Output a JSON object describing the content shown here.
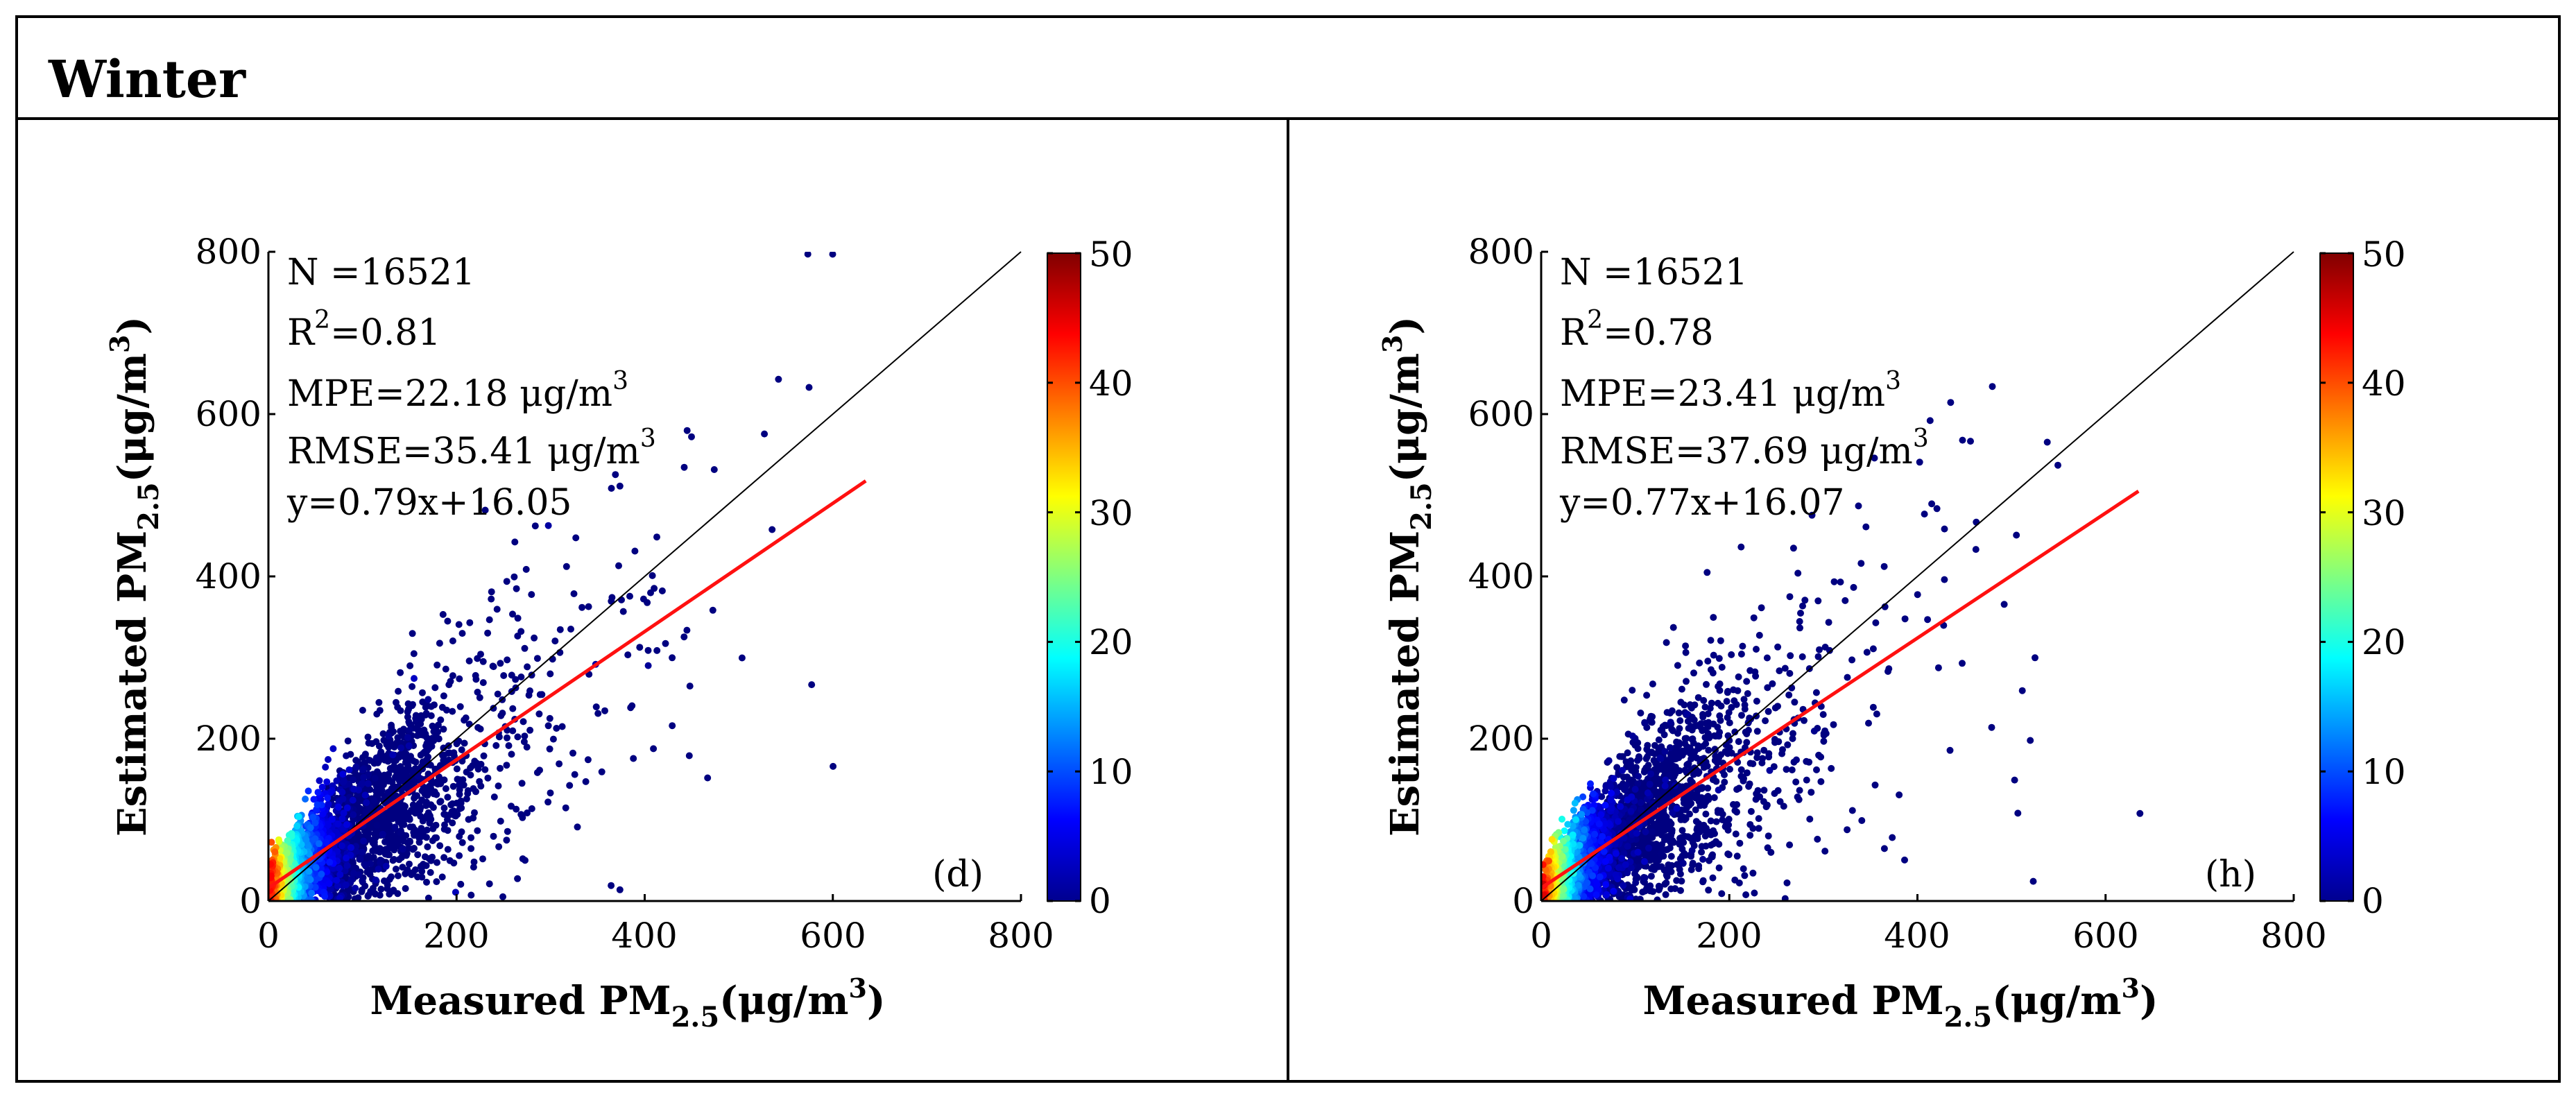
{
  "header": {
    "title": "Winter"
  },
  "colorbar": {
    "min": 0,
    "max": 50,
    "ticks": [
      0,
      10,
      20,
      30,
      40,
      50
    ],
    "colors": [
      "#00008f",
      "#0000ff",
      "#0080ff",
      "#00ffff",
      "#80ff80",
      "#ffff00",
      "#ff8000",
      "#ff0000",
      "#800000"
    ]
  },
  "chart_data": [
    {
      "type": "scatter",
      "panel_label": "(d)",
      "xlabel": {
        "main": "Measured PM",
        "sub": "2.5",
        "unit_open": "(μg/m",
        "unit_sup": "3",
        "unit_close": ")"
      },
      "ylabel": {
        "main": "Estimated PM",
        "sub": "2.5",
        "unit_open": "(μg/m",
        "unit_sup": "3",
        "unit_close": ")"
      },
      "xlim": [
        0,
        800
      ],
      "ylim": [
        0,
        800
      ],
      "xticks": [
        0,
        200,
        400,
        600,
        800
      ],
      "yticks": [
        0,
        200,
        400,
        600,
        800
      ],
      "stats": {
        "n": "N  =16521",
        "r2_label": "R",
        "r2_sup": "2",
        "r2_value": "=0.81",
        "mpe_text": "MPE=22.18 μg/m",
        "mpe_sup": "3",
        "rmse_text": "RMSE=35.41 μg/m",
        "rmse_sup": "3",
        "equation": "y=0.79x+16.05"
      },
      "regression": {
        "slope": 0.79,
        "intercept": 16.05,
        "x_range": [
          0,
          635
        ]
      },
      "reference_line": "1:1",
      "color_metric": "point density (0–50)"
    },
    {
      "type": "scatter",
      "panel_label": "(h)",
      "xlabel": {
        "main": "Measured PM",
        "sub": "2.5",
        "unit_open": "(μg/m",
        "unit_sup": "3",
        "unit_close": ")"
      },
      "ylabel": {
        "main": "Estimated PM",
        "sub": "2.5",
        "unit_open": "(μg/m",
        "unit_sup": "3",
        "unit_close": ")"
      },
      "xlim": [
        0,
        800
      ],
      "ylim": [
        0,
        800
      ],
      "xticks": [
        0,
        200,
        400,
        600,
        800
      ],
      "yticks": [
        0,
        200,
        400,
        600,
        800
      ],
      "stats": {
        "n": "N  =16521",
        "r2_label": "R",
        "r2_sup": "2",
        "r2_value": "=0.78",
        "mpe_text": "MPE=23.41 μg/m",
        "mpe_sup": "3",
        "rmse_text": "RMSE=37.69 μg/m",
        "rmse_sup": "3",
        "equation": "y=0.77x+16.07"
      },
      "regression": {
        "slope": 0.77,
        "intercept": 16.07,
        "x_range": [
          0,
          635
        ]
      },
      "reference_line": "1:1",
      "color_metric": "point density (0–50)"
    }
  ]
}
